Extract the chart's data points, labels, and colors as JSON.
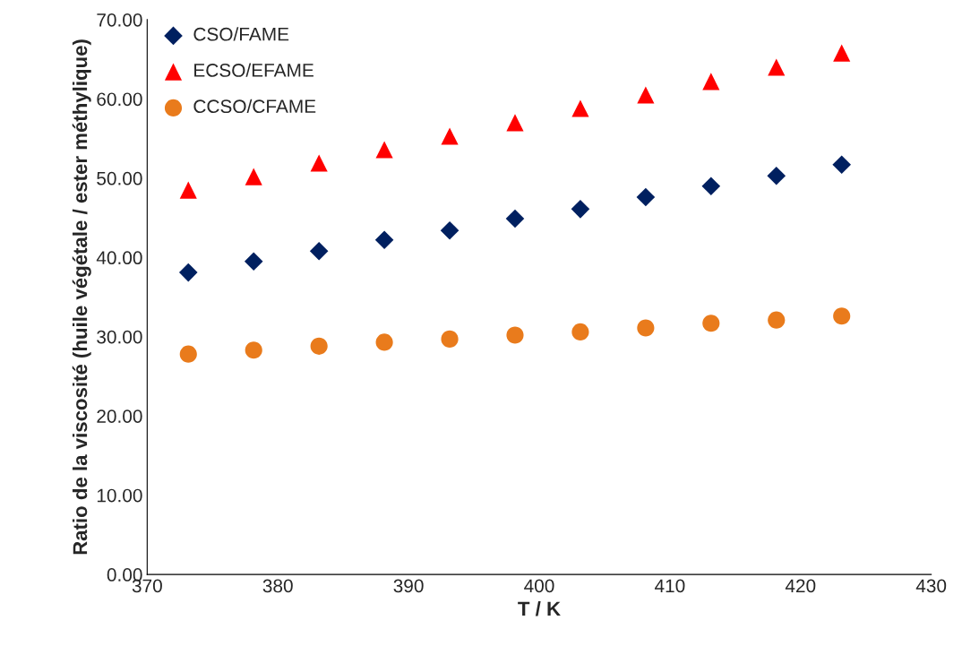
{
  "chart_data": {
    "type": "scatter",
    "xlabel": "T / K",
    "ylabel": "Ratio de la viscosité (huile végétale / ester méthylique)",
    "x": [
      373.15,
      378.15,
      383.15,
      388.15,
      393.15,
      398.15,
      403.15,
      408.15,
      413.15,
      418.15,
      423.15
    ],
    "series": [
      {
        "name": "CSO/FAME",
        "color": "#002060",
        "marker": "diamond",
        "values": [
          38.1,
          39.5,
          40.8,
          42.2,
          43.4,
          44.9,
          46.1,
          47.6,
          49.0,
          50.3,
          51.7
        ]
      },
      {
        "name": "ECSO/EFAME",
        "color": "#ff0000",
        "marker": "triangle",
        "values": [
          48.5,
          50.2,
          51.9,
          53.6,
          55.3,
          57.0,
          58.8,
          60.5,
          62.2,
          64.0,
          65.8
        ]
      },
      {
        "name": "CCSO/CFAME",
        "color": "#e97b1c",
        "marker": "circle",
        "values": [
          27.8,
          28.3,
          28.8,
          29.3,
          29.7,
          30.2,
          30.6,
          31.1,
          31.7,
          32.1,
          32.6
        ]
      }
    ],
    "xlim": [
      370,
      430
    ],
    "xticks": [
      370,
      380,
      390,
      400,
      410,
      420,
      430
    ],
    "ylim": [
      0,
      70
    ],
    "yticks": [
      {
        "value": 0,
        "label": "0.00"
      },
      {
        "value": 10,
        "label": "10.00"
      },
      {
        "value": 20,
        "label": "20.00"
      },
      {
        "value": 30,
        "label": "30.00"
      },
      {
        "value": 40,
        "label": "40.00"
      },
      {
        "value": 50,
        "label": "50.00"
      },
      {
        "value": 60,
        "label": "60.00"
      },
      {
        "value": 70,
        "label": "70.00"
      }
    ],
    "grid": false,
    "legend": "top left"
  }
}
